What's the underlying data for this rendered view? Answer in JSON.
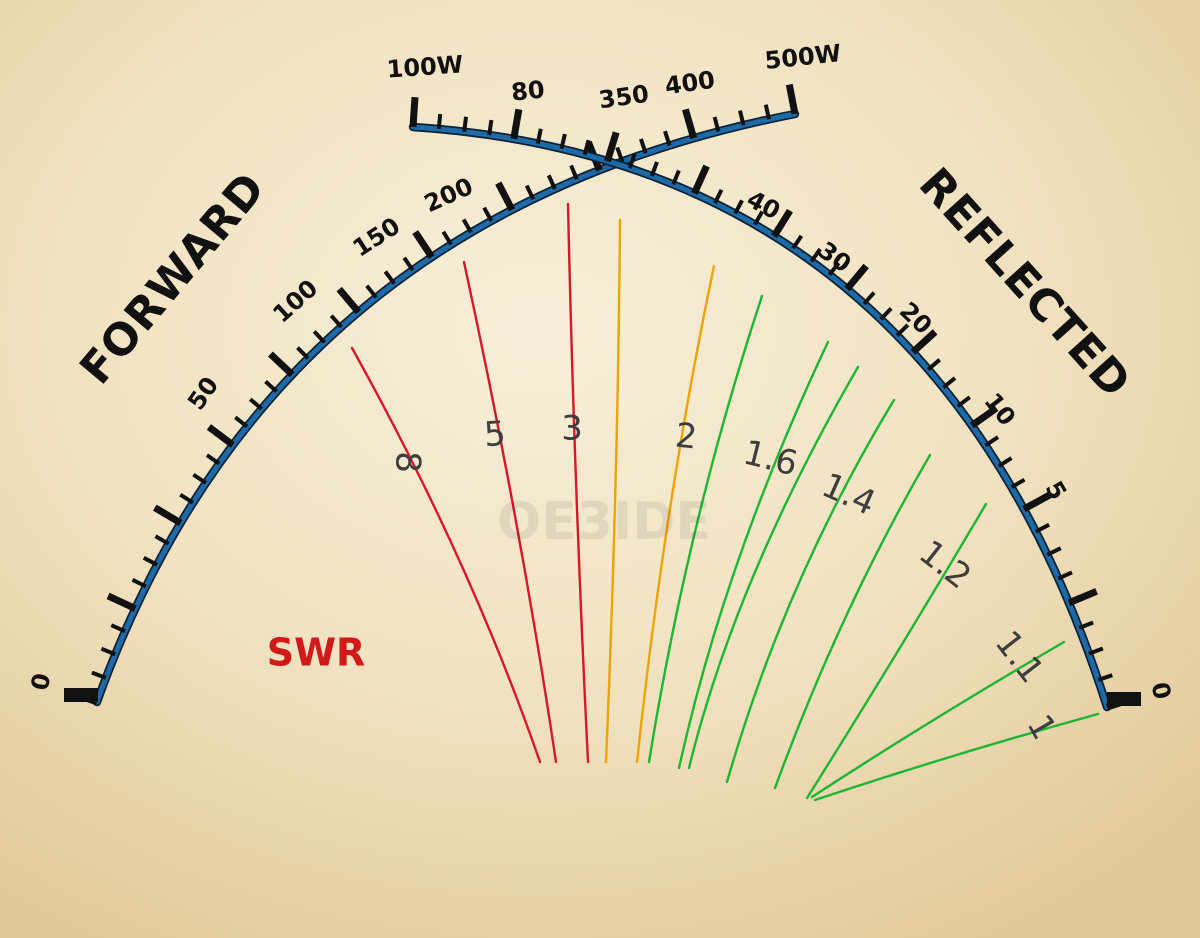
{
  "colors": {
    "arc": "#1d6aa6",
    "tick": "#111111",
    "swr_high": "#d8172d",
    "swr_mid": "#eba400",
    "swr_low": "#1db533",
    "swr_title": "#d01a1a",
    "swr_label": "#3d3d3d"
  },
  "forward": {
    "title": "FORWARD",
    "end_zero": "0",
    "low_labels": [
      "50",
      "100",
      "150",
      "200"
    ],
    "high_labels": [
      "80",
      "100W"
    ]
  },
  "reflected": {
    "title": "REFLECTED",
    "end_zero": "0",
    "low_labels": [
      "5",
      "10",
      "20",
      "30",
      "40"
    ],
    "high_labels": [
      "350",
      "400",
      "500W"
    ]
  },
  "swr": {
    "title": "SWR",
    "lines": [
      {
        "label": "8",
        "level": "high"
      },
      {
        "label": "5",
        "level": "high"
      },
      {
        "label": "3",
        "level": "high"
      },
      {
        "label": "2",
        "level": "mid"
      },
      {
        "label": "1.6",
        "level": "low"
      },
      {
        "label": "1.4",
        "level": "low"
      },
      {
        "label": "1.2",
        "level": "low"
      },
      {
        "label": "1.1",
        "level": "low"
      },
      {
        "label": "1",
        "level": "low"
      }
    ]
  },
  "watermark": "OE3IDE"
}
